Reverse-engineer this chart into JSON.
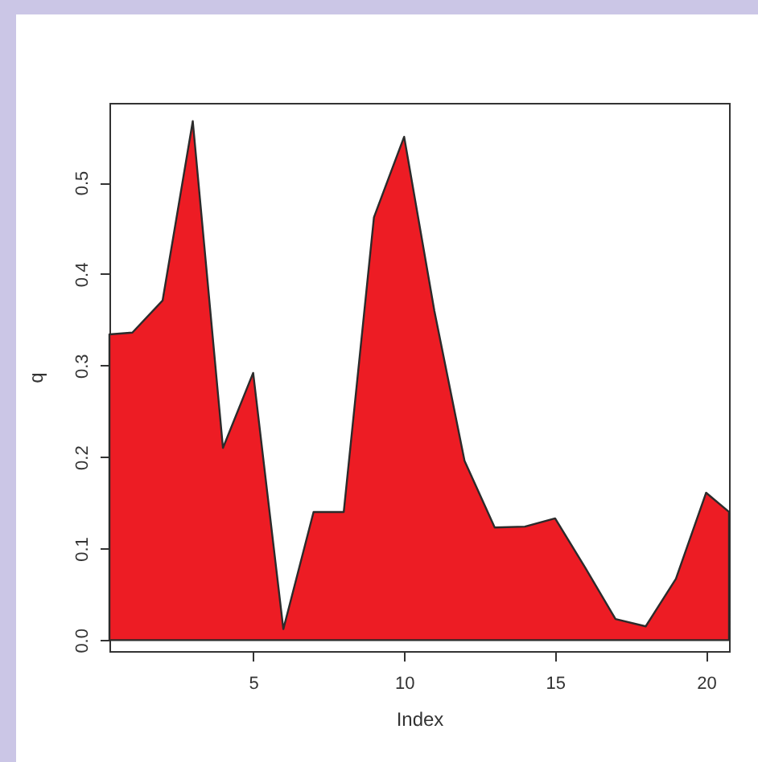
{
  "chart_data": {
    "type": "area",
    "xlabel": "Index",
    "ylabel": "q",
    "x": [
      0.24,
      1,
      2,
      3,
      4,
      5,
      6,
      7,
      8,
      9,
      10,
      11,
      12,
      13,
      14,
      15,
      16,
      17,
      18,
      19,
      20,
      20.76
    ],
    "series": [
      {
        "color": "#ed1c24",
        "values": [
          0.334,
          0.336,
          0.371,
          0.567,
          0.21,
          0.292,
          0.012,
          0.14,
          0.14,
          0.462,
          0.55,
          0.36,
          0.196,
          0.123,
          0.124,
          0.133,
          0.079,
          0.023,
          0.015,
          0.067,
          0.161,
          0.14
        ]
      }
    ],
    "xlim": [
      0.24,
      20.76
    ],
    "ylim": [
      -0.012,
      0.587
    ],
    "xticks": [
      5,
      10,
      15,
      20
    ],
    "yticks": [
      {
        "value": 0,
        "label": "0.0"
      },
      0.1,
      0.2,
      0.3,
      0.4,
      0.5
    ]
  }
}
